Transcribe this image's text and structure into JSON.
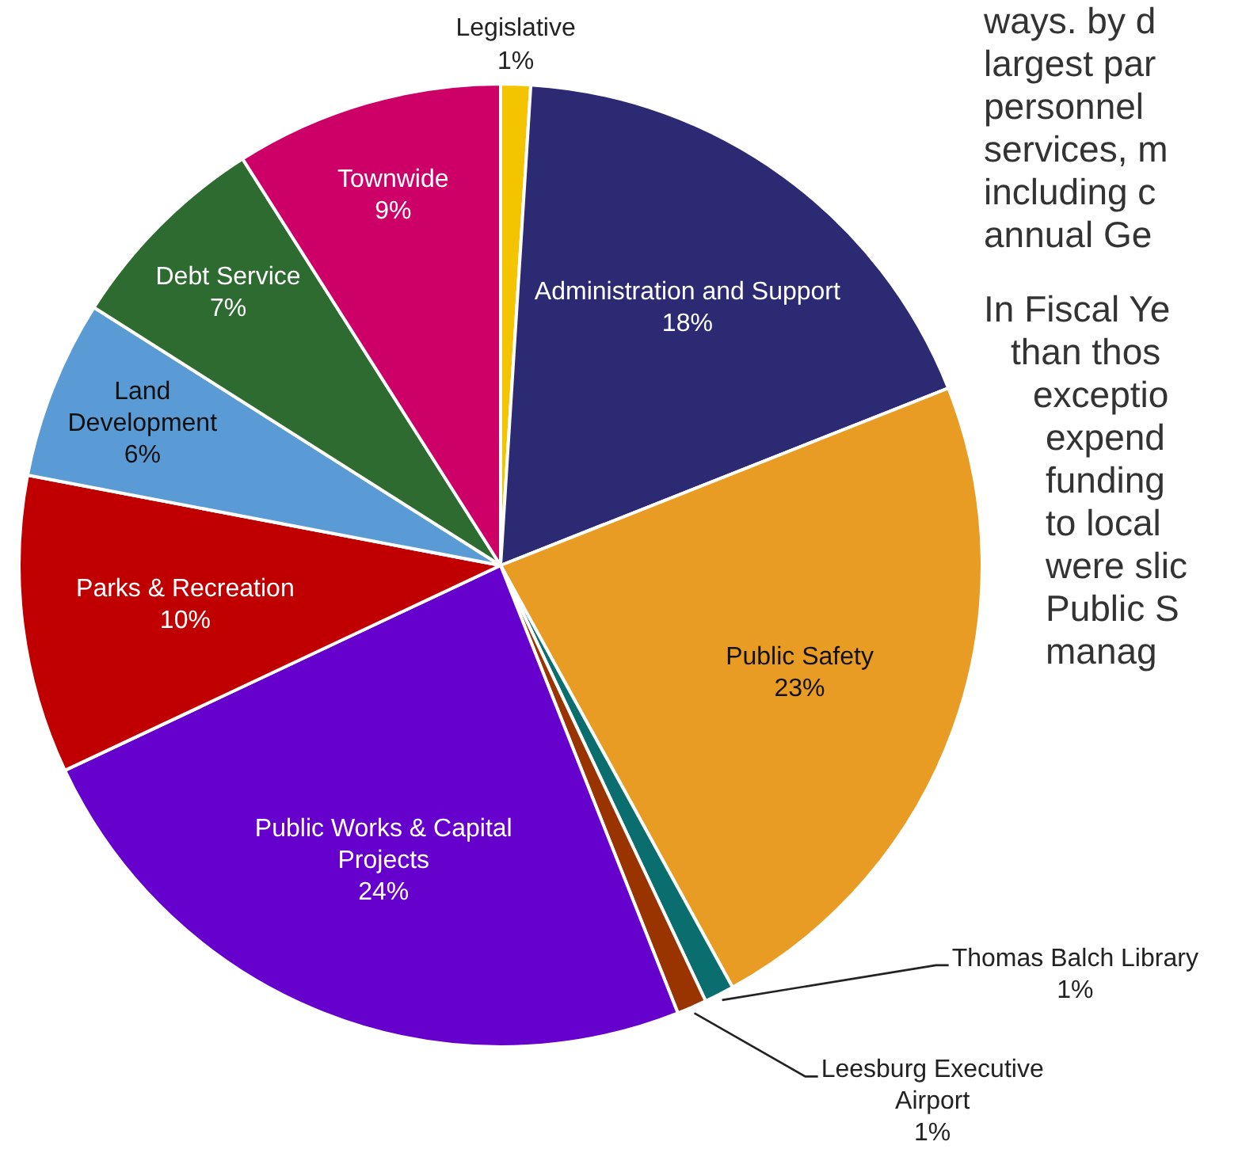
{
  "chart_data": {
    "type": "pie",
    "categories": [
      "Legislative",
      "Administration and Support",
      "Public Safety",
      "Thomas Balch Library",
      "Leesburg Executive Airport",
      "Public Works & Capital Projects",
      "Parks & Recreation",
      "Land Development",
      "Debt Service",
      "Townwide"
    ],
    "values": [
      1,
      18,
      23,
      1,
      1,
      24,
      10,
      6,
      7,
      9
    ],
    "value_labels": [
      "1%",
      "18%",
      "23%",
      "1%",
      "1%",
      "24%",
      "10%",
      "6%",
      "7%",
      "9%"
    ],
    "colors": [
      "#f5c400",
      "#2b2a72",
      "#e89c24",
      "#0a6e6e",
      "#993300",
      "#6600cc",
      "#c00000",
      "#5b9bd5",
      "#2e6b30",
      "#cc0066"
    ],
    "legend": false,
    "annotations": [
      "ways. by d",
      "largest par",
      "personnel",
      "services, m",
      "including c",
      "annual Ge",
      "In Fiscal Ye",
      "than thos",
      "exceptio",
      "expend",
      "funding",
      "to local",
      "were slic",
      "Public S",
      "manag"
    ]
  }
}
